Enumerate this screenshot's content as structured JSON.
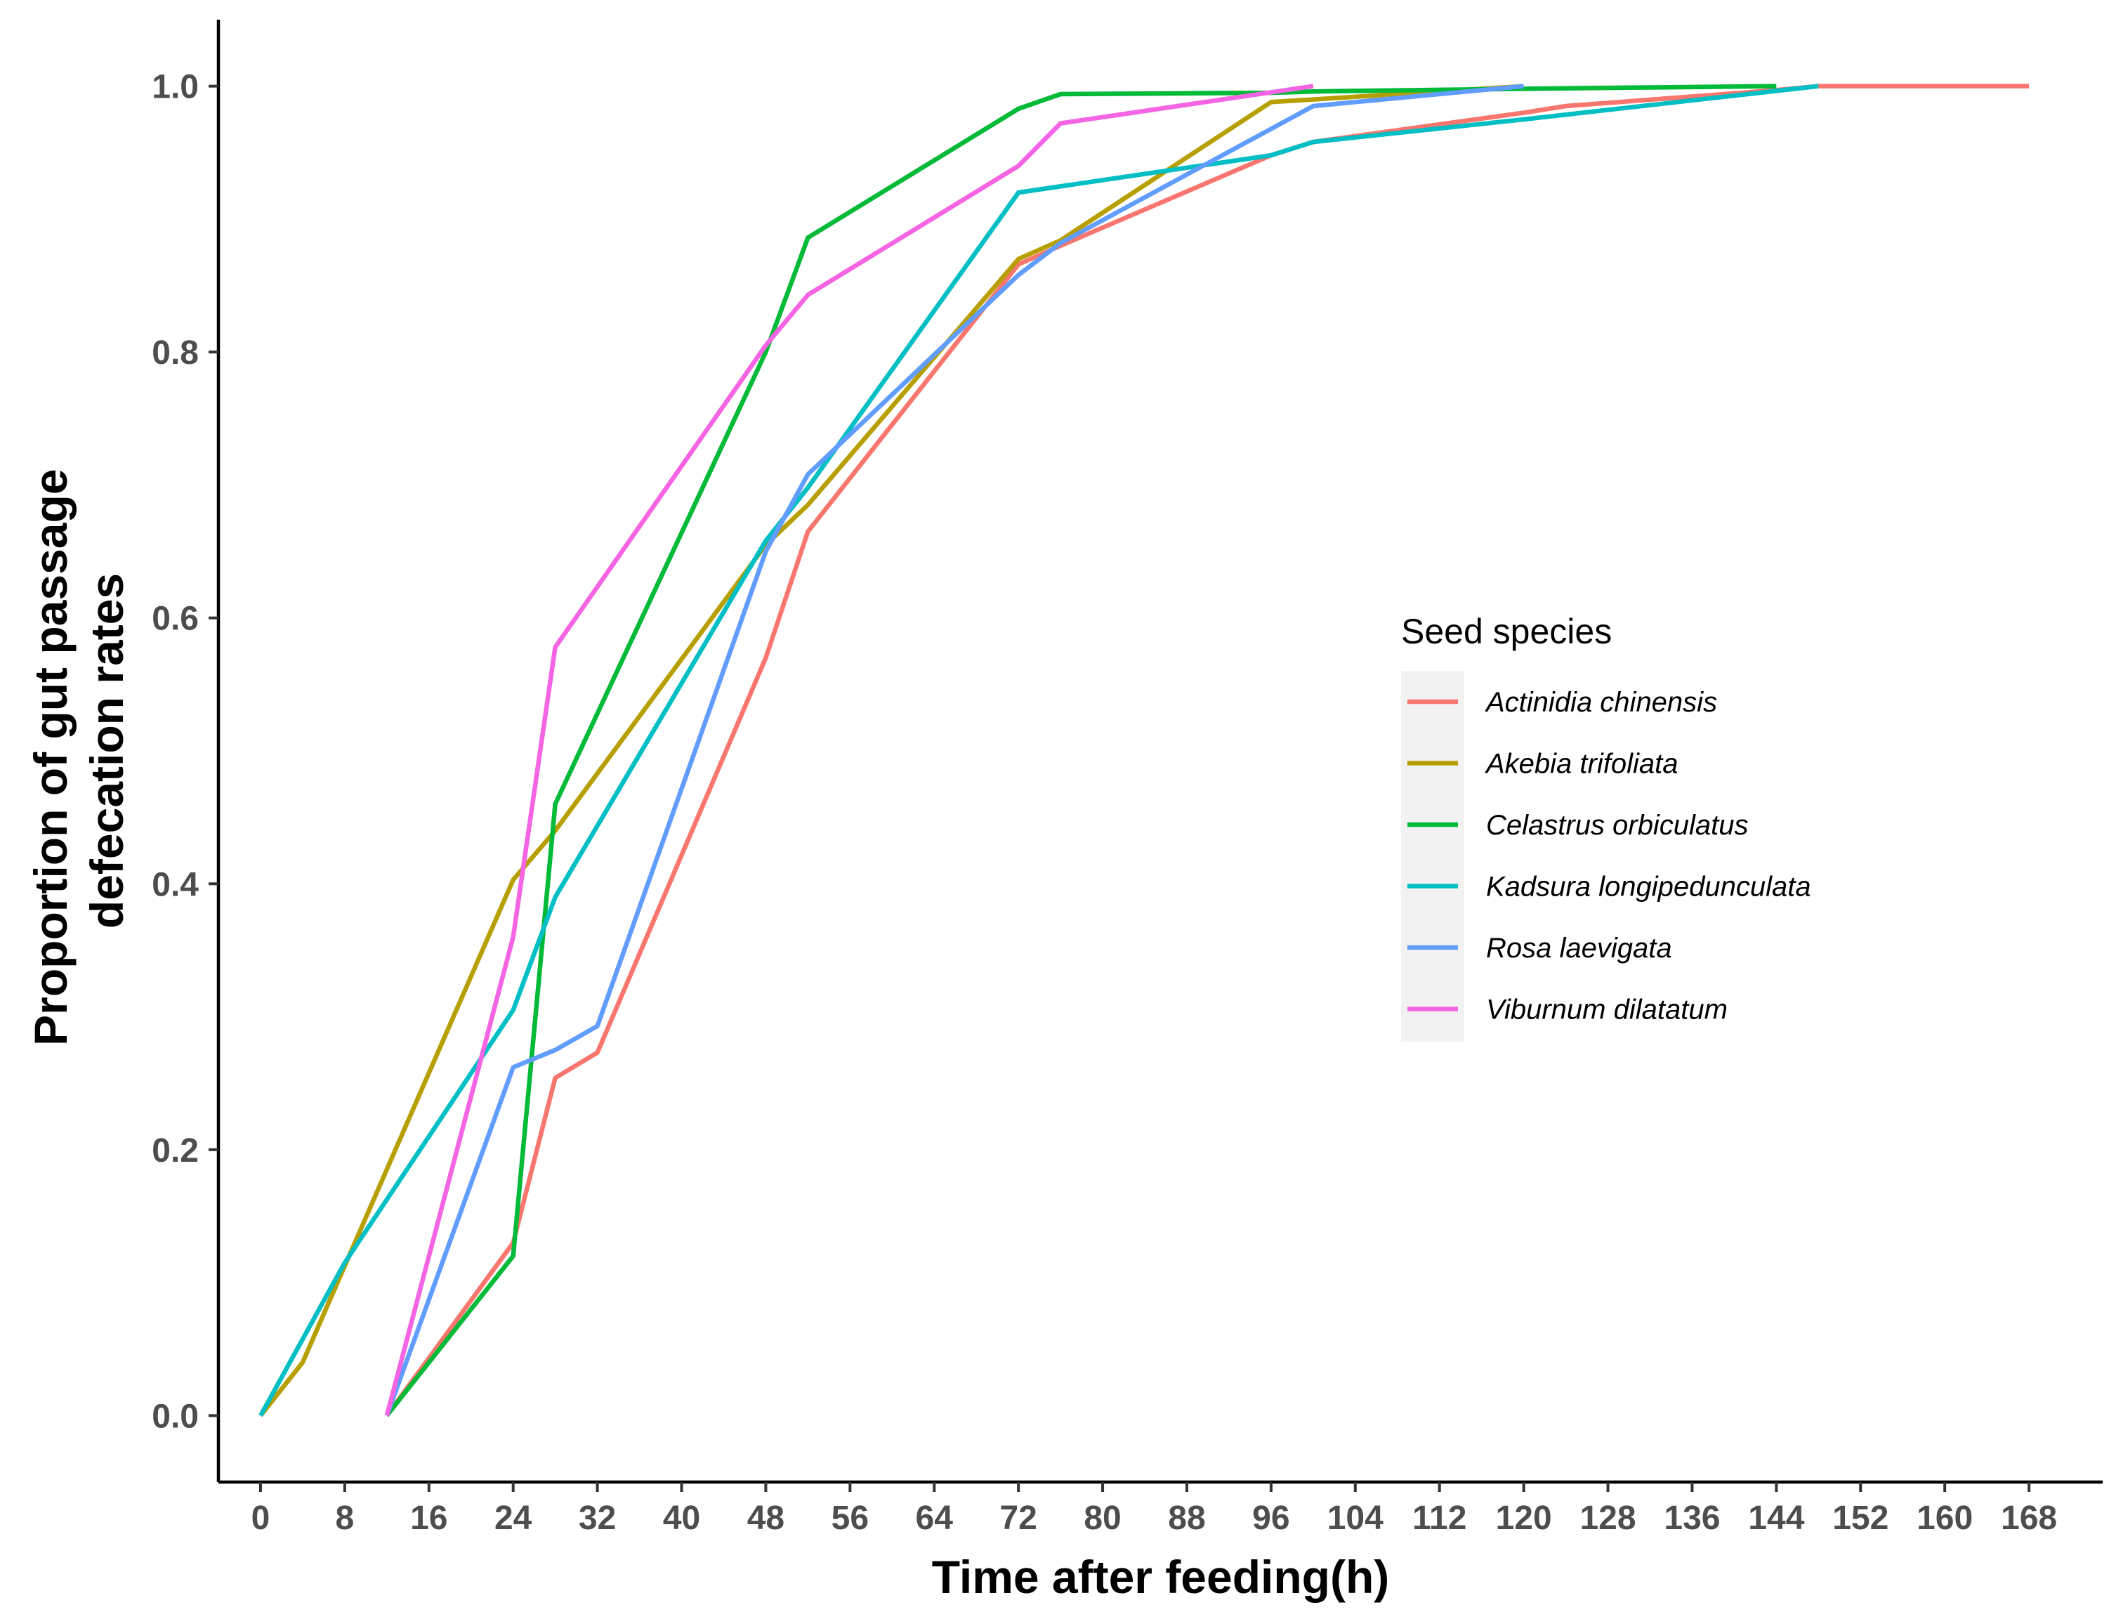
{
  "chart_data": {
    "type": "line",
    "title": "",
    "xlabel": "Time after feeding(h)",
    "ylabel_lines": [
      "Proportion of gut passage",
      "defecation rates"
    ],
    "xlim": [
      -4,
      175
    ],
    "ylim": [
      -0.05,
      1.05
    ],
    "xticks": [
      0,
      8,
      16,
      24,
      32,
      40,
      48,
      56,
      64,
      72,
      80,
      88,
      96,
      104,
      112,
      120,
      128,
      136,
      144,
      152,
      160,
      168
    ],
    "xtick_labels": [
      "0",
      "8",
      "16",
      "24",
      "32",
      "40",
      "48",
      "56",
      "64",
      "72",
      "80",
      "88",
      "96",
      "104",
      "112",
      "120",
      "128",
      "136",
      "144",
      "152",
      "160",
      "168"
    ],
    "yticks": [
      0.0,
      0.2,
      0.4,
      0.6,
      0.8,
      1.0
    ],
    "ytick_labels": [
      "0.0",
      "0.2",
      "0.4",
      "0.6",
      "0.8",
      "1.0"
    ],
    "grid": false,
    "legend": {
      "title": "Seed species",
      "position": "right"
    },
    "series": [
      {
        "name": "Actinidia chinensis",
        "color": "#F8766D",
        "x": [
          12,
          24,
          28,
          32,
          48,
          52,
          72,
          76,
          96,
          100,
          120,
          124,
          144,
          148,
          168
        ],
        "y": [
          0.0,
          0.13,
          0.254,
          0.273,
          0.57,
          0.665,
          0.866,
          0.88,
          0.948,
          0.958,
          0.98,
          0.985,
          0.997,
          1.0,
          1.0
        ]
      },
      {
        "name": "Akebia trifoliata",
        "color": "#B79F00",
        "x": [
          0,
          4,
          24,
          28,
          48,
          52,
          72,
          76,
          96,
          100,
          120
        ],
        "y": [
          0.0,
          0.04,
          0.403,
          0.44,
          0.655,
          0.685,
          0.87,
          0.884,
          0.988,
          0.99,
          1.0
        ]
      },
      {
        "name": "Celastrus orbiculatus",
        "color": "#00BA38",
        "x": [
          12,
          24,
          28,
          48,
          52,
          72,
          76,
          96,
          100,
          120,
          144
        ],
        "y": [
          0.0,
          0.12,
          0.46,
          0.8,
          0.886,
          0.983,
          0.994,
          0.995,
          0.996,
          0.998,
          1.0
        ]
      },
      {
        "name": "Kadsura longipedunculata",
        "color": "#00BFC4",
        "x": [
          0,
          8,
          24,
          28,
          48,
          52,
          72,
          96,
          100,
          120,
          148
        ],
        "y": [
          0.0,
          0.115,
          0.305,
          0.39,
          0.658,
          0.698,
          0.92,
          0.948,
          0.958,
          0.975,
          1.0
        ]
      },
      {
        "name": "Rosa laevigata",
        "color": "#619CFF",
        "x": [
          12,
          24,
          28,
          32,
          48,
          52,
          72,
          76,
          100,
          120
        ],
        "y": [
          0.0,
          0.262,
          0.275,
          0.293,
          0.65,
          0.708,
          0.858,
          0.882,
          0.985,
          1.0
        ]
      },
      {
        "name": "Viburnum dilatatum",
        "color": "#F564E3",
        "x": [
          12,
          24,
          28,
          48,
          52,
          72,
          76,
          100
        ],
        "y": [
          0.0,
          0.36,
          0.578,
          0.805,
          0.843,
          0.94,
          0.972,
          1.0
        ]
      }
    ]
  }
}
